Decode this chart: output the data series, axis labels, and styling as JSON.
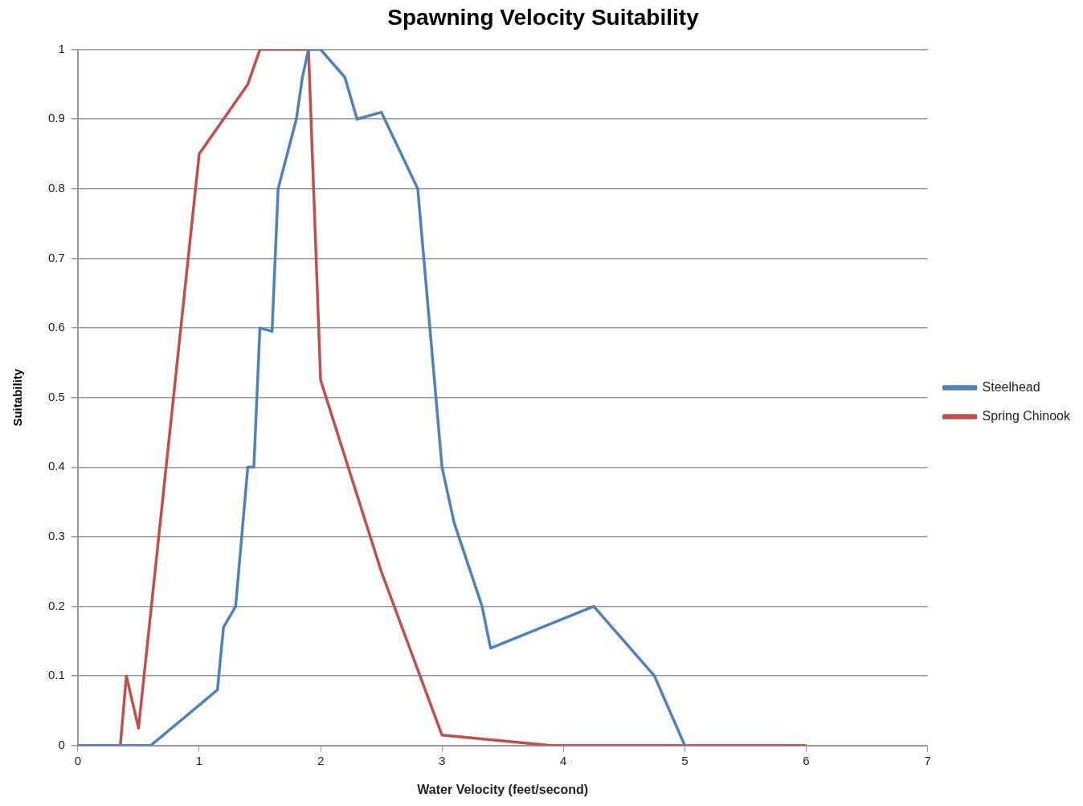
{
  "chart_data": {
    "type": "line",
    "title": "Spawning Velocity Suitability",
    "xlabel": "Water Velocity (feet/second)",
    "ylabel": "Suitability",
    "xlim": [
      0,
      7
    ],
    "xticks": [
      0,
      1,
      2,
      3,
      4,
      5,
      6,
      7
    ],
    "ylim": [
      0,
      1
    ],
    "yticks": [
      0,
      0.1,
      0.2,
      0.3,
      0.4,
      0.5,
      0.6,
      0.7,
      0.8,
      0.9,
      1
    ],
    "grid": "y",
    "legend": "right",
    "marker": "none",
    "line_style": "solid",
    "series": [
      {
        "name": "Steelhead",
        "color": "#4f81bd",
        "x": [
          0,
          0.6,
          1.15,
          1.2,
          1.3,
          1.4,
          1.45,
          1.5,
          1.6,
          1.65,
          1.8,
          1.85,
          1.9,
          2.0,
          2.2,
          2.3,
          2.5,
          2.8,
          3.0,
          3.1,
          3.33,
          3.4,
          4.25,
          4.75,
          5.0
        ],
        "values": [
          0,
          0,
          0.08,
          0.17,
          0.2,
          0.4,
          0.4,
          0.6,
          0.595,
          0.8,
          0.9,
          0.96,
          1,
          1,
          0.96,
          0.9,
          0.91,
          0.8,
          0.4,
          0.32,
          0.2,
          0.14,
          0.2,
          0.1,
          0
        ]
      },
      {
        "name": "Spring Chinook",
        "color": "#c0504d",
        "x": [
          0,
          0.35,
          0.4,
          0.5,
          1.0,
          1.4,
          1.5,
          1.9,
          2.0,
          2.5,
          3.0,
          3.9,
          6.0
        ],
        "values": [
          0,
          0,
          0.1,
          0.025,
          0.85,
          0.95,
          1,
          1,
          0.525,
          0.25,
          0.015,
          0,
          0
        ]
      }
    ]
  }
}
